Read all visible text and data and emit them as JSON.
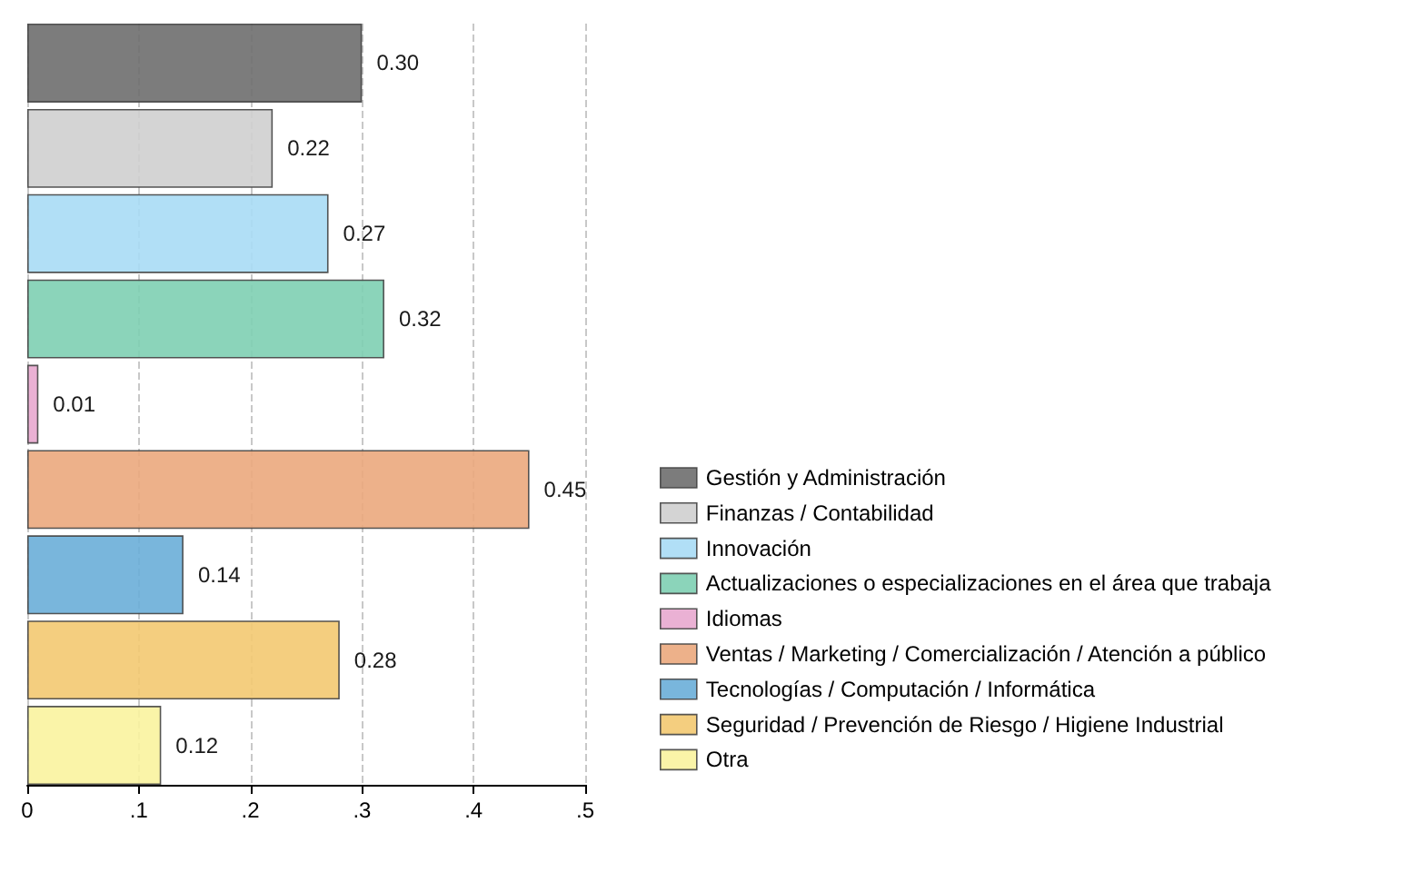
{
  "chart_data": {
    "type": "bar",
    "orientation": "horizontal",
    "categories": [
      null
    ],
    "series": [
      {
        "name": "Gestión y Administración",
        "color": "#6e6e6e",
        "values": [
          0.3
        ],
        "value_labels": [
          "0.30"
        ]
      },
      {
        "name": "Finanzas / Contabilidad",
        "color": "#cfcfcf",
        "values": [
          0.22
        ],
        "value_labels": [
          "0.22"
        ]
      },
      {
        "name": "Innovación",
        "color": "#a8dcf5",
        "values": [
          0.27
        ],
        "value_labels": [
          "0.27"
        ]
      },
      {
        "name": "Actualizaciones o especializaciones en el área que trabaja",
        "color": "#7ecfb3",
        "values": [
          0.32
        ],
        "value_labels": [
          "0.32"
        ]
      },
      {
        "name": "Idiomas",
        "color": "#e8a9cf",
        "values": [
          0.01
        ],
        "value_labels": [
          "0.01"
        ]
      },
      {
        "name": "Ventas / Marketing / Comercialización / Atención a público",
        "color": "#eba97d",
        "values": [
          0.45
        ],
        "value_labels": [
          "0.45"
        ]
      },
      {
        "name": "Tecnologías / Computación / Informática",
        "color": "#6aaed8",
        "values": [
          0.14
        ],
        "value_labels": [
          "0.14"
        ]
      },
      {
        "name": "Seguridad / Prevención de Riesgo / Higiene Industrial",
        "color": "#f3c971",
        "values": [
          0.28
        ],
        "value_labels": [
          "0.28"
        ]
      },
      {
        "name": "Otra",
        "color": "#f9f39e",
        "values": [
          0.12
        ],
        "value_labels": [
          "0.12"
        ]
      }
    ],
    "xlim": [
      0,
      0.5
    ],
    "xticks": [
      0,
      {
        "value": 0.1,
        "label": ".1"
      },
      {
        "value": 0.2,
        "label": ".2"
      },
      {
        "value": 0.3,
        "label": ".3"
      },
      {
        "value": 0.4,
        "label": ".4"
      },
      {
        "value": 0.5,
        "label": ".5"
      }
    ],
    "grid": "x",
    "legend": "right"
  }
}
